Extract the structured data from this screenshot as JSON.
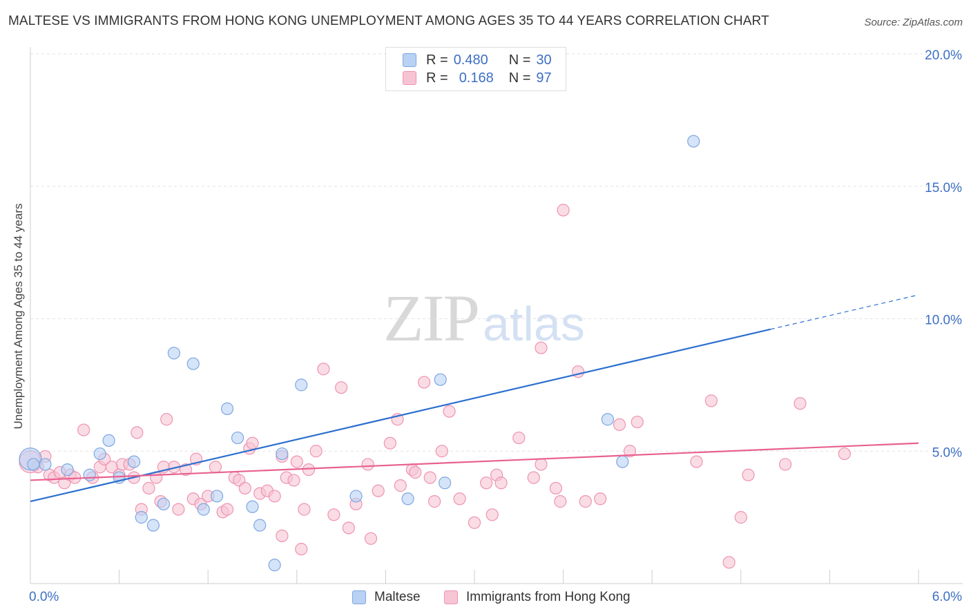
{
  "title": "MALTESE VS IMMIGRANTS FROM HONG KONG UNEMPLOYMENT AMONG AGES 35 TO 44 YEARS CORRELATION CHART",
  "source": "Source: ZipAtlas.com",
  "watermark": {
    "zip": "ZIP",
    "atlas": "atlas"
  },
  "legend": {
    "rows": [
      {
        "r_label": "R =",
        "r_value": "0.480",
        "n_label": "N =",
        "n_value": "30"
      },
      {
        "r_label": "R =",
        "r_value": "0.168",
        "n_label": "N =",
        "n_value": "97"
      }
    ]
  },
  "colors": {
    "blue_fill": "#b9d2f3",
    "blue_stroke": "#7ea6e0",
    "blue_line": "#2b6fcf",
    "pink_fill": "#f7c4d4",
    "pink_stroke": "#ee93b1",
    "pink_line": "#e8608f",
    "tick_label": "#3d6fc4",
    "grid": "#e2e2e2"
  },
  "chart_data": {
    "type": "scatter",
    "title": "MALTESE VS IMMIGRANTS FROM HONG KONG UNEMPLOYMENT AMONG AGES 35 TO 44 YEARS CORRELATION CHART",
    "xlabel": "",
    "ylabel": "Unemployment Among Ages 35 to 44 years",
    "xlim": [
      0,
      6
    ],
    "ylim": [
      0,
      20
    ],
    "x_tick_labels": [
      "0.0%",
      "6.0%"
    ],
    "y_ticks": [
      5,
      10,
      15,
      20
    ],
    "y_tick_labels": [
      "5.0%",
      "10.0%",
      "15.0%",
      "20.0%"
    ],
    "grid": true,
    "legend_position": "top-center",
    "series": [
      {
        "name": "Maltese",
        "color": "blue",
        "r": 0.48,
        "n": 30,
        "trend": {
          "x0": 0,
          "y0": 3.1,
          "x1": 5.0,
          "y1": 9.6,
          "dash_to_x": 6.0,
          "dash_to_y": 10.9
        },
        "points": [
          [
            0.0,
            4.7
          ],
          [
            0.02,
            4.5
          ],
          [
            0.1,
            4.5
          ],
          [
            0.25,
            4.3
          ],
          [
            0.4,
            4.1
          ],
          [
            0.47,
            4.9
          ],
          [
            0.53,
            5.4
          ],
          [
            0.6,
            4.0
          ],
          [
            0.7,
            4.6
          ],
          [
            0.75,
            2.5
          ],
          [
            0.83,
            2.2
          ],
          [
            0.9,
            3.0
          ],
          [
            0.97,
            8.7
          ],
          [
            1.1,
            8.3
          ],
          [
            1.17,
            2.8
          ],
          [
            1.26,
            3.3
          ],
          [
            1.33,
            6.6
          ],
          [
            1.4,
            5.5
          ],
          [
            1.5,
            2.9
          ],
          [
            1.55,
            2.2
          ],
          [
            1.65,
            0.7
          ],
          [
            1.7,
            4.9
          ],
          [
            1.83,
            7.5
          ],
          [
            2.2,
            3.3
          ],
          [
            2.55,
            3.2
          ],
          [
            2.77,
            7.7
          ],
          [
            2.8,
            3.8
          ],
          [
            3.9,
            6.2
          ],
          [
            4.48,
            16.7
          ],
          [
            4.0,
            4.6
          ]
        ]
      },
      {
        "name": "Immigrants from Hong Kong",
        "color": "pink",
        "r": 0.168,
        "n": 97,
        "trend": {
          "x0": 0,
          "y0": 3.9,
          "x1": 6.0,
          "y1": 5.3
        },
        "points": [
          [
            0.0,
            4.6
          ],
          [
            0.05,
            4.4
          ],
          [
            0.1,
            4.8
          ],
          [
            0.13,
            4.1
          ],
          [
            0.16,
            4.0
          ],
          [
            0.2,
            4.2
          ],
          [
            0.23,
            3.8
          ],
          [
            0.27,
            4.1
          ],
          [
            0.3,
            4.0
          ],
          [
            0.36,
            5.8
          ],
          [
            0.42,
            4.0
          ],
          [
            0.47,
            4.4
          ],
          [
            0.5,
            4.7
          ],
          [
            0.55,
            4.4
          ],
          [
            0.6,
            4.1
          ],
          [
            0.62,
            4.5
          ],
          [
            0.67,
            4.5
          ],
          [
            0.7,
            4.0
          ],
          [
            0.72,
            5.7
          ],
          [
            0.75,
            2.8
          ],
          [
            0.8,
            3.6
          ],
          [
            0.85,
            4.0
          ],
          [
            0.88,
            3.1
          ],
          [
            0.92,
            6.2
          ],
          [
            0.97,
            4.4
          ],
          [
            1.0,
            2.8
          ],
          [
            1.05,
            4.3
          ],
          [
            1.1,
            3.2
          ],
          [
            1.12,
            4.7
          ],
          [
            1.15,
            3.0
          ],
          [
            1.2,
            3.3
          ],
          [
            1.25,
            4.4
          ],
          [
            1.3,
            2.7
          ],
          [
            1.33,
            2.8
          ],
          [
            1.38,
            4.0
          ],
          [
            1.41,
            3.9
          ],
          [
            1.45,
            3.6
          ],
          [
            1.48,
            5.1
          ],
          [
            1.5,
            5.3
          ],
          [
            1.55,
            3.4
          ],
          [
            1.6,
            3.5
          ],
          [
            1.65,
            3.3
          ],
          [
            1.7,
            4.8
          ],
          [
            1.73,
            4.0
          ],
          [
            1.78,
            3.9
          ],
          [
            1.8,
            4.6
          ],
          [
            1.83,
            1.3
          ],
          [
            1.85,
            2.8
          ],
          [
            1.88,
            4.3
          ],
          [
            1.93,
            5.0
          ],
          [
            1.98,
            8.1
          ],
          [
            2.05,
            2.6
          ],
          [
            2.1,
            7.4
          ],
          [
            2.15,
            2.1
          ],
          [
            2.2,
            3.0
          ],
          [
            2.28,
            4.5
          ],
          [
            2.35,
            3.5
          ],
          [
            2.43,
            5.3
          ],
          [
            2.48,
            6.2
          ],
          [
            2.5,
            3.7
          ],
          [
            2.58,
            4.3
          ],
          [
            2.6,
            4.2
          ],
          [
            2.66,
            7.6
          ],
          [
            2.7,
            4.0
          ],
          [
            2.73,
            3.1
          ],
          [
            2.78,
            5.0
          ],
          [
            2.83,
            6.5
          ],
          [
            2.9,
            3.2
          ],
          [
            3.0,
            2.3
          ],
          [
            3.08,
            3.8
          ],
          [
            3.12,
            2.6
          ],
          [
            3.15,
            4.1
          ],
          [
            3.18,
            3.8
          ],
          [
            3.3,
            5.5
          ],
          [
            3.4,
            4.0
          ],
          [
            3.45,
            4.5
          ],
          [
            3.55,
            3.6
          ],
          [
            3.58,
            3.1
          ],
          [
            3.7,
            8.0
          ],
          [
            3.75,
            3.1
          ],
          [
            3.85,
            3.2
          ],
          [
            3.98,
            6.0
          ],
          [
            4.05,
            5.0
          ],
          [
            4.1,
            6.1
          ],
          [
            4.5,
            4.6
          ],
          [
            4.6,
            6.9
          ],
          [
            4.72,
            0.8
          ],
          [
            4.8,
            2.5
          ],
          [
            4.85,
            4.1
          ],
          [
            5.5,
            4.9
          ],
          [
            5.2,
            6.8
          ],
          [
            5.1,
            4.5
          ],
          [
            3.6,
            14.1
          ],
          [
            3.45,
            8.9
          ],
          [
            2.3,
            1.7
          ],
          [
            1.7,
            1.8
          ],
          [
            0.9,
            4.4
          ]
        ]
      }
    ]
  },
  "bottom_legend": [
    {
      "label": "Maltese"
    },
    {
      "label": "Immigrants from Hong Kong"
    }
  ]
}
